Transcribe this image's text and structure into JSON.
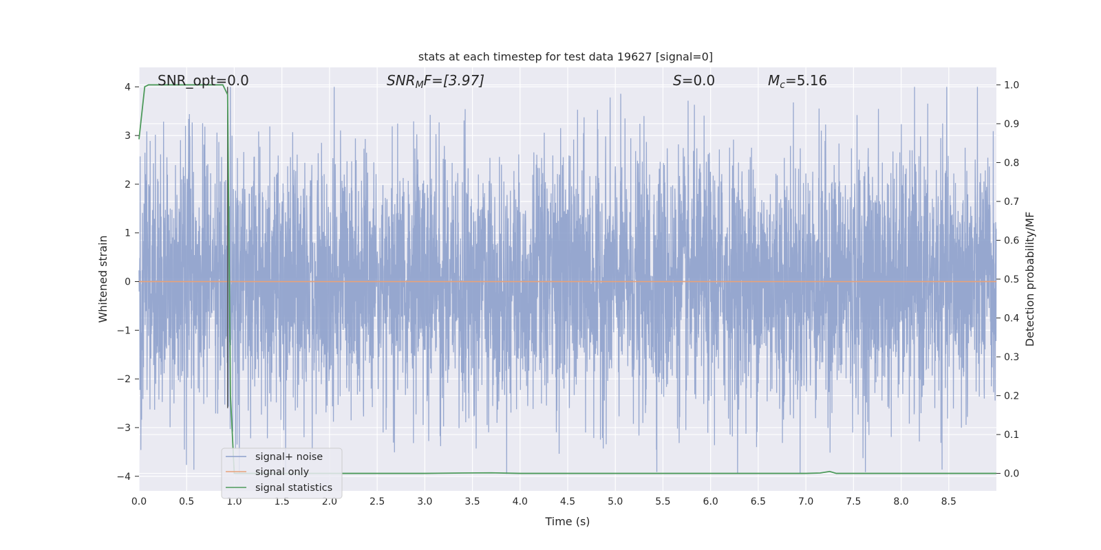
{
  "chart_data": {
    "type": "line",
    "title": "stats at each timestep for test data 19627 [signal=0]",
    "xlabel": "Time (s)",
    "ylabel_left": "Whitened strain",
    "ylabel_right": "Detection probability/MF",
    "xlim": [
      0.0,
      9.0
    ],
    "ylim_left": [
      -4.3,
      4.4
    ],
    "ylim_right": [
      -0.045,
      1.045
    ],
    "xticks": [
      0.0,
      0.5,
      1.0,
      1.5,
      2.0,
      2.5,
      3.0,
      3.5,
      4.0,
      4.5,
      5.0,
      5.5,
      6.0,
      6.5,
      7.0,
      7.5,
      8.0,
      8.5
    ],
    "xtick_labels": [
      "0.0",
      "0.5",
      "1.0",
      "1.5",
      "2.0",
      "2.5",
      "3.0",
      "3.5",
      "4.0",
      "4.5",
      "5.0",
      "5.5",
      "6.0",
      "6.5",
      "7.0",
      "7.5",
      "8.0",
      "8.5"
    ],
    "yticks_left": [
      -4,
      -3,
      -2,
      -1,
      0,
      1,
      2,
      3,
      4
    ],
    "ytick_labels_left": [
      "−4",
      "−3",
      "−2",
      "−1",
      "0",
      "1",
      "2",
      "3",
      "4"
    ],
    "yticks_right": [
      0.0,
      0.1,
      0.2,
      0.3,
      0.4,
      0.5,
      0.6,
      0.7,
      0.8,
      0.9,
      1.0
    ],
    "ytick_labels_right": [
      "0.0",
      "0.1",
      "0.2",
      "0.3",
      "0.4",
      "0.5",
      "0.6",
      "0.7",
      "0.8",
      "0.9",
      "1.0"
    ],
    "grid": true,
    "legend_position": "lower-left",
    "annotations": {
      "snr_opt": "SNR_opt=0.0",
      "snr_mf_base": "SNR",
      "snr_mf_sub": "M",
      "snr_mf_rest": "F=[3.97]",
      "s_label": "S",
      "s_value": "=0.0",
      "mc_base": "M",
      "mc_sub": "c",
      "mc_value": "=5.16"
    },
    "vertical_marker_x": 0.93,
    "series": [
      {
        "name": "signal+ noise",
        "color": "#8da0cb",
        "axis": "left",
        "description_stats": {
          "amplitude_typical": 1.3,
          "max": 4.0,
          "min": -3.95,
          "samples_per_second": 512
        }
      },
      {
        "name": "signal only",
        "color": "#e8a27a",
        "axis": "left",
        "x": [
          0.0,
          9.0
        ],
        "y": [
          0.0,
          0.0
        ]
      },
      {
        "name": "signal statistics",
        "color": "#4c9a5a",
        "axis": "right",
        "x": [
          0.0,
          0.06,
          0.1,
          0.5,
          0.88,
          0.93,
          0.96,
          1.0,
          2.0,
          3.0,
          3.4,
          3.7,
          4.0,
          5.0,
          6.0,
          7.0,
          7.15,
          7.25,
          7.32,
          7.5,
          8.0,
          9.0
        ],
        "y": [
          0.86,
          0.995,
          1.0,
          1.0,
          1.0,
          0.975,
          0.2,
          0.0,
          0.0,
          0.0,
          0.001,
          0.0015,
          0.0,
          0.0,
          0.0,
          0.0,
          0.001,
          0.005,
          0.0,
          0.0,
          0.0,
          0.0
        ]
      }
    ]
  }
}
